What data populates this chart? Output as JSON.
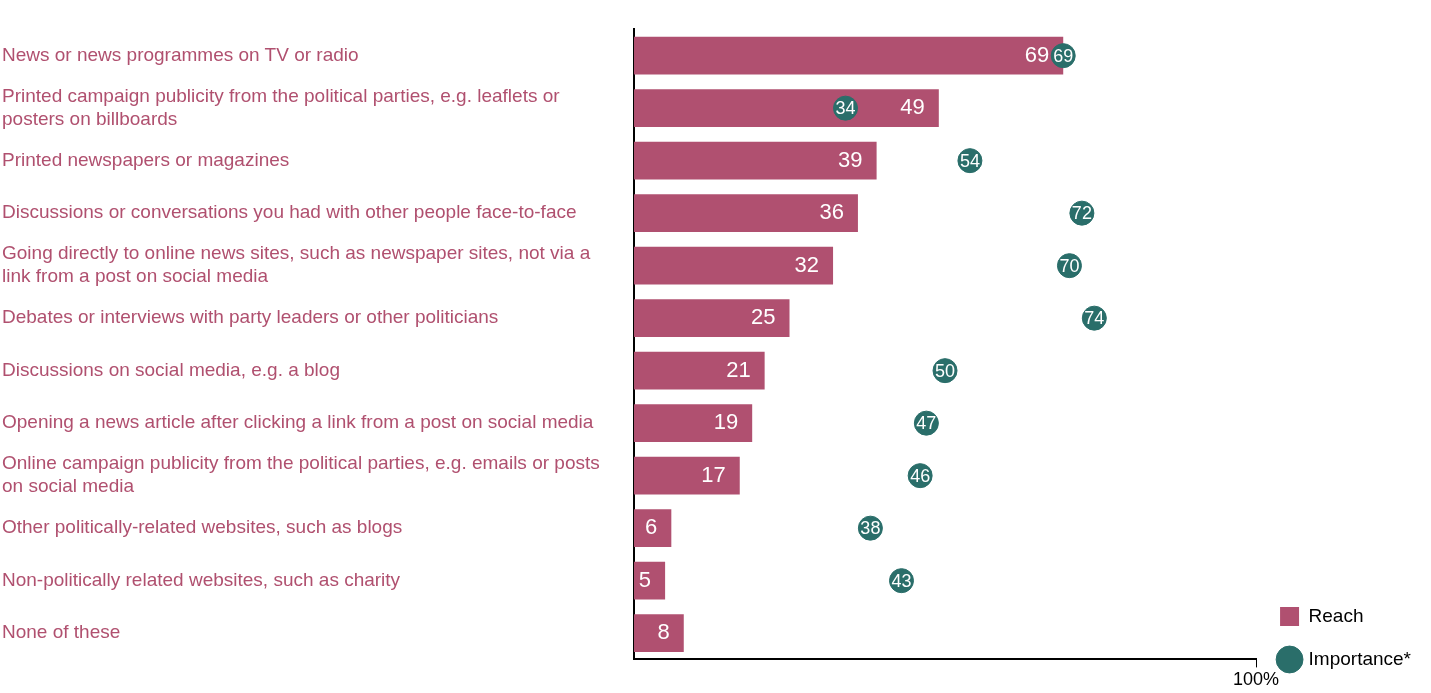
{
  "chart_data": {
    "type": "bar",
    "orientation": "horizontal",
    "categories": [
      "News or news programmes on TV or radio",
      "Printed campaign publicity from the political parties, e.g. leaflets or posters on billboards",
      "Printed newspapers or magazines",
      "Discussions or conversations you had with other people face-to-face",
      "Going directly to online news sites, such as newspaper sites, not via a link from a post on social media",
      "Debates or interviews with party leaders or other politicians",
      "Discussions on social media, e.g. a blog",
      "Opening a news article after clicking a link from a post on social media",
      "Online campaign publicity from the political parties, e.g. emails or posts on social media",
      "Other politically-related websites, such as blogs",
      "Non-politically related websites, such as charity",
      "None of these"
    ],
    "series": [
      {
        "name": "Reach",
        "color": "#b05070",
        "values": [
          69,
          49,
          39,
          36,
          32,
          25,
          21,
          19,
          17,
          6,
          5,
          8
        ]
      },
      {
        "name": "Importance*",
        "type": "scatter",
        "color": "#2a6e6a",
        "values": [
          69,
          34,
          54,
          72,
          70,
          74,
          50,
          47,
          46,
          38,
          43,
          null
        ]
      }
    ],
    "xlim": [
      0,
      100
    ],
    "xticks": [
      {
        "value": 100,
        "label": "100%"
      }
    ],
    "data_labels": true,
    "legend": "bottom right",
    "grid": false,
    "marker": "circle"
  }
}
